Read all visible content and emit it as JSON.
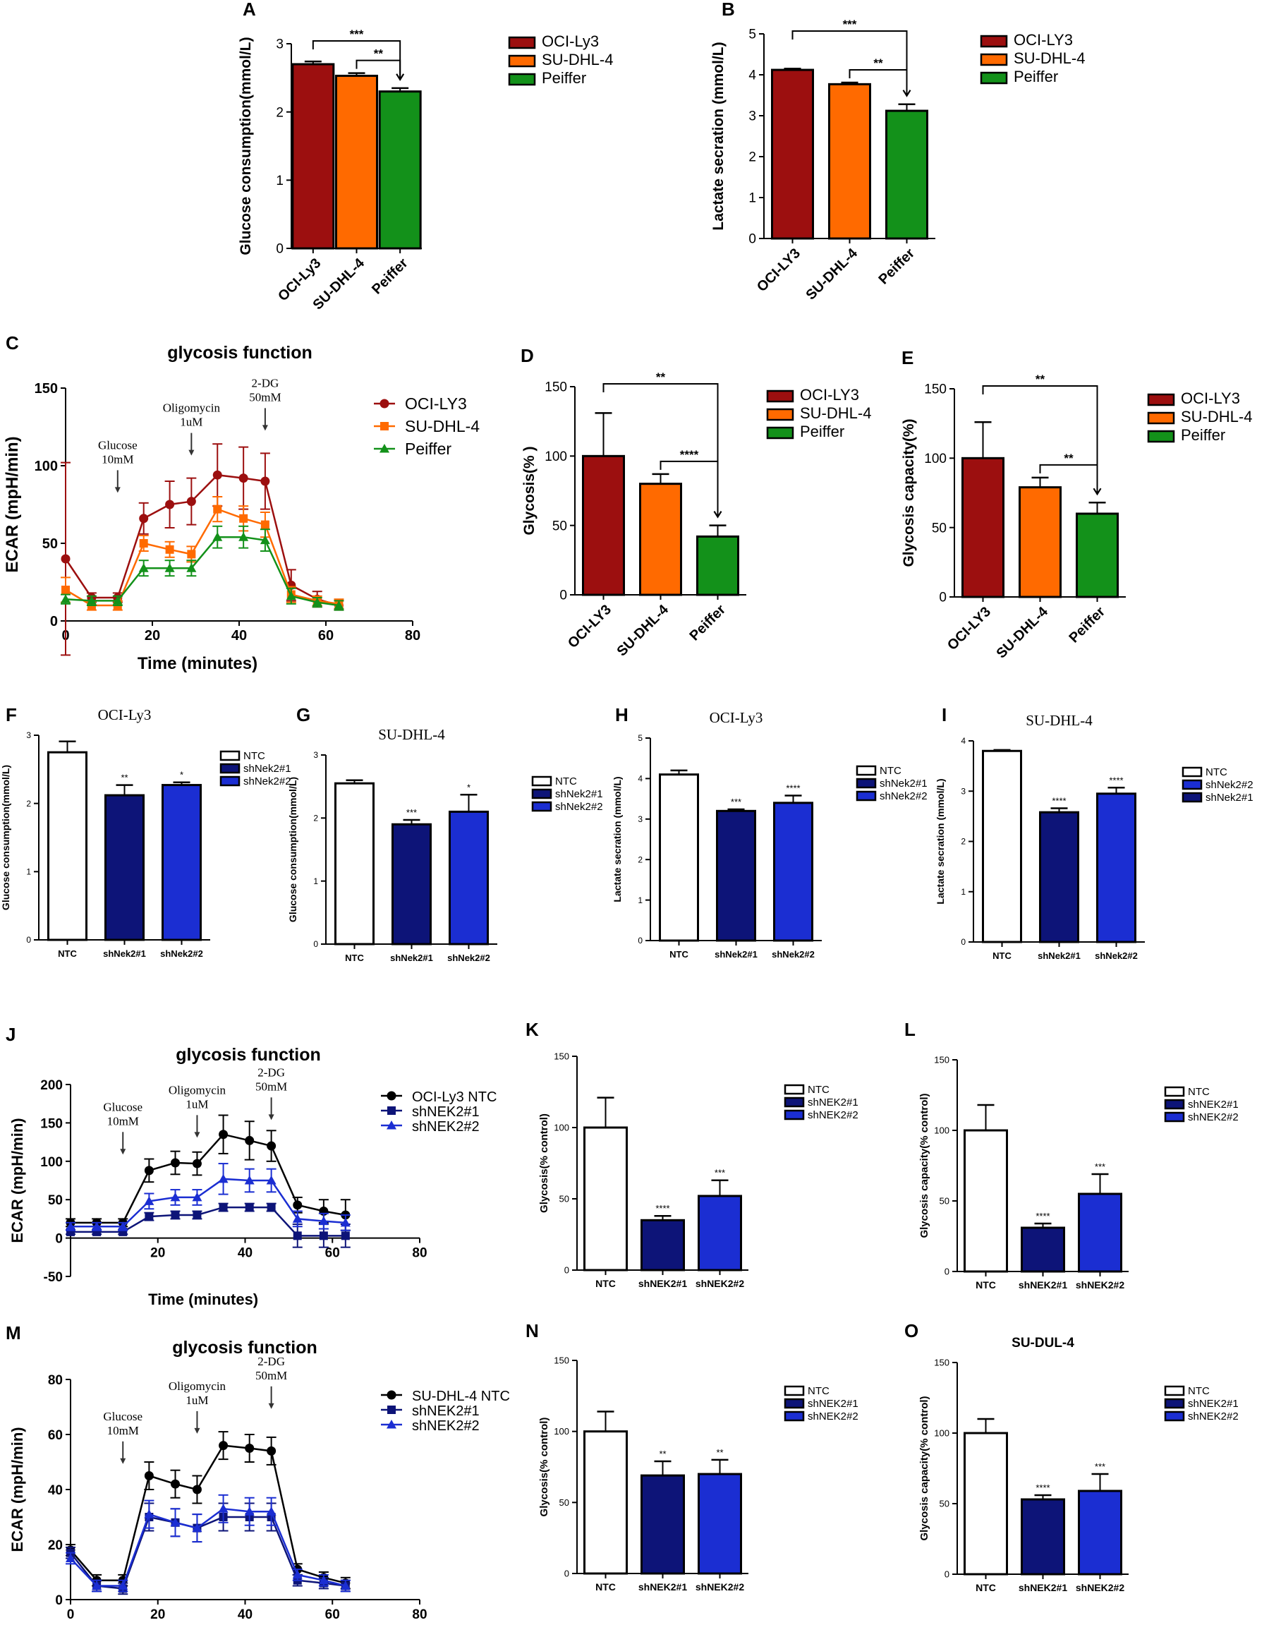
{
  "colors": {
    "ocily3": "#9c0f0f",
    "sudhl4": "#ff6a00",
    "peiffer": "#13911a",
    "navy": "#0d1478",
    "blue": "#1b2ed2",
    "black": "#000000"
  },
  "chart_data": [
    {
      "panel": "A",
      "type": "bar",
      "title": "",
      "ylabel": "Glucose consumption(mmol/L)",
      "categories": [
        "OCI-Ly3",
        "SU-DHL-4",
        "Peiffer"
      ],
      "values": [
        2.7,
        2.53,
        2.3
      ],
      "errors": [
        0.04,
        0.04,
        0.05
      ],
      "ylim": [
        0,
        3
      ],
      "yticks": [
        0,
        1,
        2,
        3
      ],
      "legend": [
        "OCI-Ly3",
        "SU-DHL-4",
        "Peiffer"
      ],
      "sig": [
        {
          "from": 0,
          "to": 2,
          "label": "***"
        },
        {
          "from": 1,
          "to": 2,
          "label": "**"
        }
      ]
    },
    {
      "panel": "B",
      "type": "bar",
      "title": "",
      "ylabel": "Lactate secration (mmol/L)",
      "categories": [
        "OCI-LY3",
        "SU-DHL-4",
        "Peiffer"
      ],
      "values": [
        4.12,
        3.77,
        3.12
      ],
      "errors": [
        0.03,
        0.04,
        0.16
      ],
      "ylim": [
        0,
        5
      ],
      "yticks": [
        0,
        1,
        2,
        3,
        4,
        5
      ],
      "legend": [
        "OCI-LY3",
        "SU-DHL-4",
        "Peiffer"
      ],
      "sig": [
        {
          "from": 0,
          "to": 2,
          "label": "***"
        },
        {
          "from": 1,
          "to": 2,
          "label": "**"
        }
      ]
    },
    {
      "panel": "C",
      "type": "line",
      "title": "glycosis function",
      "xlabel": "Time (minutes)",
      "ylabel": "ECAR (mpH/min)",
      "xlim": [
        0,
        80
      ],
      "ylim": [
        0,
        150
      ],
      "xticks": [
        0,
        20,
        40,
        60,
        80
      ],
      "yticks": [
        0,
        50,
        100,
        150
      ],
      "x": [
        0,
        6,
        12,
        18,
        24,
        29,
        35,
        41,
        46,
        52,
        58,
        63
      ],
      "series": [
        {
          "name": "OCI-LY3",
          "marker": "circle",
          "values": [
            40,
            15,
            15,
            66,
            75,
            77,
            94,
            92,
            90,
            23,
            14,
            10
          ],
          "errors": [
            62,
            3,
            3,
            10,
            15,
            15,
            20,
            20,
            18,
            10,
            5,
            3
          ]
        },
        {
          "name": "SU-DHL-4",
          "marker": "square",
          "values": [
            20,
            10,
            10,
            50,
            46,
            43,
            72,
            66,
            62,
            17,
            13,
            11
          ],
          "errors": [
            8,
            3,
            3,
            5,
            5,
            5,
            8,
            8,
            8,
            5,
            3,
            3
          ]
        },
        {
          "name": "Peiffer",
          "marker": "triangle",
          "values": [
            14,
            13,
            13,
            34,
            34,
            34,
            54,
            54,
            52,
            16,
            12,
            10
          ],
          "errors": [
            3,
            3,
            3,
            5,
            5,
            5,
            7,
            7,
            7,
            5,
            3,
            3
          ]
        }
      ],
      "annotations": [
        {
          "x": 12,
          "lines": [
            "Glucose",
            "10mM"
          ]
        },
        {
          "x": 29,
          "lines": [
            "Oligomycin",
            "1uM"
          ]
        },
        {
          "x": 46,
          "lines": [
            "2-DG",
            "50mM"
          ]
        }
      ]
    },
    {
      "panel": "D",
      "type": "bar",
      "title": "",
      "ylabel": "Glycosis(% )",
      "categories": [
        "OCI-LY3",
        "SU-DHL-4",
        "Peiffer"
      ],
      "values": [
        100,
        80,
        42
      ],
      "errors": [
        31,
        7,
        8
      ],
      "ylim": [
        0,
        150
      ],
      "yticks": [
        0,
        50,
        100,
        150
      ],
      "legend": [
        "OCI-LY3",
        "SU-DHL-4",
        "Peiffer"
      ],
      "sig": [
        {
          "from": 0,
          "to": 2,
          "label": "**"
        },
        {
          "from": 1,
          "to": 2,
          "label": "****"
        }
      ]
    },
    {
      "panel": "E",
      "type": "bar",
      "title": "",
      "ylabel": "Glycosis capacity(%)",
      "categories": [
        "OCI-LY3",
        "SU-DHL-4",
        "Peiffer"
      ],
      "values": [
        100,
        79,
        60
      ],
      "errors": [
        26,
        7,
        8
      ],
      "ylim": [
        0,
        150
      ],
      "yticks": [
        0,
        50,
        100,
        150
      ],
      "legend": [
        "OCI-LY3",
        "SU-DHL-4",
        "Peiffer"
      ],
      "sig": [
        {
          "from": 0,
          "to": 2,
          "label": "**"
        },
        {
          "from": 1,
          "to": 2,
          "label": "**"
        }
      ]
    },
    {
      "panel": "F",
      "type": "bar",
      "title": "OCI-Ly3",
      "ylabel": "Glucose consumption(mmol/L)",
      "categories": [
        "NTC",
        "shNek2#1",
        "shNek2#2"
      ],
      "values": [
        2.75,
        2.12,
        2.27
      ],
      "errors": [
        0.16,
        0.15,
        0.04
      ],
      "ylim": [
        0,
        3
      ],
      "yticks": [
        0,
        1,
        2,
        3
      ],
      "legend": [
        "NTC",
        "shNek2#1",
        "shNek2#2"
      ],
      "stars": [
        "",
        "**",
        "*"
      ]
    },
    {
      "panel": "G",
      "type": "bar",
      "title": "SU-DHL-4",
      "ylabel": "Glucose consumption(mmol/L)",
      "categories": [
        "NTC",
        "shNek2#1",
        "shNek2#2"
      ],
      "values": [
        2.55,
        1.9,
        2.1
      ],
      "errors": [
        0.05,
        0.07,
        0.27
      ],
      "ylim": [
        0,
        3
      ],
      "yticks": [
        0,
        1,
        2,
        3
      ],
      "legend": [
        "NTC",
        "shNek2#1",
        "shNek2#2"
      ],
      "stars": [
        "",
        "***",
        "*"
      ]
    },
    {
      "panel": "H",
      "type": "bar",
      "title": "OCI-Ly3",
      "ylabel": "Lactate secration (mmol/L)",
      "categories": [
        "NTC",
        "shNek2#1",
        "shNek2#2"
      ],
      "values": [
        4.1,
        3.2,
        3.4
      ],
      "errors": [
        0.1,
        0.04,
        0.18
      ],
      "ylim": [
        0,
        5
      ],
      "yticks": [
        0,
        1,
        2,
        3,
        4,
        5
      ],
      "legend": [
        "NTC",
        "shNek2#1",
        "shNek2#2"
      ],
      "stars": [
        "",
        "***",
        "****"
      ]
    },
    {
      "panel": "I",
      "type": "bar",
      "title": "SU-DHL-4",
      "ylabel": "Lactate secration (mmol/L)",
      "categories": [
        "NTC",
        "shNek2#1",
        "shNek2#2"
      ],
      "values": [
        3.8,
        2.58,
        2.95
      ],
      "errors": [
        0.02,
        0.08,
        0.12
      ],
      "ylim": [
        0,
        4
      ],
      "yticks": [
        0,
        1,
        2,
        3,
        4
      ],
      "legend": [
        "NTC",
        "shNek2#2",
        "shNek2#1"
      ],
      "stars": [
        "",
        "****",
        "****"
      ]
    },
    {
      "panel": "J",
      "type": "line",
      "title": "glycosis function",
      "xlabel": "Time (minutes)",
      "ylabel": "ECAR (mpH/min)",
      "xlim": [
        0,
        80
      ],
      "ylim": [
        -50,
        200
      ],
      "xticks": [
        20,
        40,
        60,
        80
      ],
      "yticks": [
        -50,
        0,
        50,
        100,
        150,
        200
      ],
      "x": [
        0,
        6,
        12,
        18,
        24,
        29,
        35,
        41,
        46,
        52,
        58,
        63
      ],
      "series": [
        {
          "name": "OCI-Ly3 NTC",
          "marker": "circle",
          "values": [
            20,
            20,
            20,
            88,
            98,
            97,
            135,
            127,
            120,
            43,
            35,
            30
          ],
          "errors": [
            5,
            5,
            5,
            15,
            15,
            15,
            25,
            25,
            20,
            10,
            15,
            20
          ]
        },
        {
          "name": "shNEK2#1",
          "marker": "square",
          "values": [
            8,
            8,
            8,
            28,
            30,
            30,
            40,
            40,
            40,
            3,
            3,
            3
          ],
          "errors": [
            3,
            3,
            3,
            5,
            5,
            5,
            5,
            5,
            5,
            15,
            15,
            15
          ]
        },
        {
          "name": "shNEK2#2",
          "marker": "triangle",
          "values": [
            15,
            15,
            15,
            48,
            53,
            53,
            77,
            75,
            75,
            25,
            22,
            20
          ],
          "errors": [
            5,
            5,
            5,
            10,
            10,
            10,
            20,
            15,
            15,
            10,
            10,
            10
          ]
        }
      ],
      "annotations": [
        {
          "x": 12,
          "lines": [
            "Glucose",
            "10mM"
          ]
        },
        {
          "x": 29,
          "lines": [
            "Oligomycin",
            "1uM"
          ]
        },
        {
          "x": 46,
          "lines": [
            "2-DG",
            "50mM"
          ]
        }
      ]
    },
    {
      "panel": "K",
      "type": "bar",
      "title": "",
      "ylabel": "Glycosis(% control)",
      "categories": [
        "NTC",
        "shNEK2#1",
        "shNEK2#2"
      ],
      "values": [
        100,
        35,
        52
      ],
      "errors": [
        21,
        3,
        11
      ],
      "ylim": [
        0,
        150
      ],
      "yticks": [
        0,
        50,
        100,
        150
      ],
      "legend": [
        "NTC",
        "shNEK2#1",
        "shNEK2#2"
      ],
      "stars": [
        "",
        "****",
        "***"
      ]
    },
    {
      "panel": "L",
      "type": "bar",
      "title": "",
      "ylabel": "Glycosis capacity(% control)",
      "categories": [
        "NTC",
        "shNEK2#1",
        "shNEK2#2"
      ],
      "values": [
        100,
        31,
        55
      ],
      "errors": [
        18,
        3,
        14
      ],
      "ylim": [
        0,
        150
      ],
      "yticks": [
        0,
        50,
        100,
        150
      ],
      "legend": [
        "NTC",
        "shNEK2#1",
        "shNEK2#2"
      ],
      "stars": [
        "",
        "****",
        "***"
      ]
    },
    {
      "panel": "M",
      "type": "line",
      "title": "glycosis function",
      "xlabel": "Time (minutes)",
      "ylabel": "ECAR (mpH/min)",
      "xlim": [
        0,
        80
      ],
      "ylim": [
        0,
        80
      ],
      "xticks": [
        0,
        20,
        40,
        60,
        80
      ],
      "yticks": [
        0,
        20,
        40,
        60,
        80
      ],
      "x": [
        0,
        6,
        12,
        18,
        24,
        29,
        35,
        41,
        46,
        52,
        58,
        63
      ],
      "series": [
        {
          "name": "SU-DHL-4 NTC",
          "marker": "circle",
          "values": [
            18,
            7,
            7,
            45,
            42,
            40,
            56,
            55,
            54,
            11,
            8,
            6
          ],
          "errors": [
            2,
            2,
            2,
            5,
            5,
            5,
            5,
            5,
            5,
            2,
            2,
            2
          ]
        },
        {
          "name": "shNEK2#1",
          "marker": "square",
          "values": [
            17,
            5,
            4,
            30,
            28,
            26,
            30,
            30,
            30,
            7,
            6,
            5
          ],
          "errors": [
            2,
            2,
            2,
            5,
            5,
            5,
            5,
            5,
            5,
            2,
            2,
            2
          ]
        },
        {
          "name": "shNEK2#2",
          "marker": "triangle",
          "values": [
            15,
            5,
            5,
            31,
            28,
            26,
            33,
            32,
            32,
            9,
            7,
            5
          ],
          "errors": [
            2,
            2,
            2,
            5,
            5,
            5,
            5,
            5,
            5,
            2,
            2,
            2
          ]
        }
      ],
      "annotations": [
        {
          "x": 12,
          "lines": [
            "Glucose",
            "10mM"
          ]
        },
        {
          "x": 29,
          "lines": [
            "Oligomycin",
            "1uM"
          ]
        },
        {
          "x": 46,
          "lines": [
            "2-DG",
            "50mM"
          ]
        }
      ]
    },
    {
      "panel": "N",
      "type": "bar",
      "title": "",
      "ylabel": "Glycosis(% control)",
      "categories": [
        "NTC",
        "shNEK2#1",
        "shNEK2#2"
      ],
      "values": [
        100,
        69,
        70
      ],
      "errors": [
        14,
        10,
        10
      ],
      "ylim": [
        0,
        150
      ],
      "yticks": [
        0,
        50,
        100,
        150
      ],
      "legend": [
        "NTC",
        "shNEK2#1",
        "shNEK2#2"
      ],
      "stars": [
        "",
        "**",
        "**"
      ]
    },
    {
      "panel": "O",
      "type": "bar",
      "title": "SU-DUL-4",
      "ylabel": "Glycosis capacity(% control)",
      "categories": [
        "NTC",
        "shNEK2#1",
        "shNEK2#2"
      ],
      "values": [
        100,
        53,
        59
      ],
      "errors": [
        10,
        3,
        12
      ],
      "ylim": [
        0,
        150
      ],
      "yticks": [
        0,
        50,
        100,
        150
      ],
      "legend": [
        "NTC",
        "shNEK2#1",
        "shNEK2#2"
      ],
      "stars": [
        "",
        "****",
        "***"
      ]
    }
  ]
}
